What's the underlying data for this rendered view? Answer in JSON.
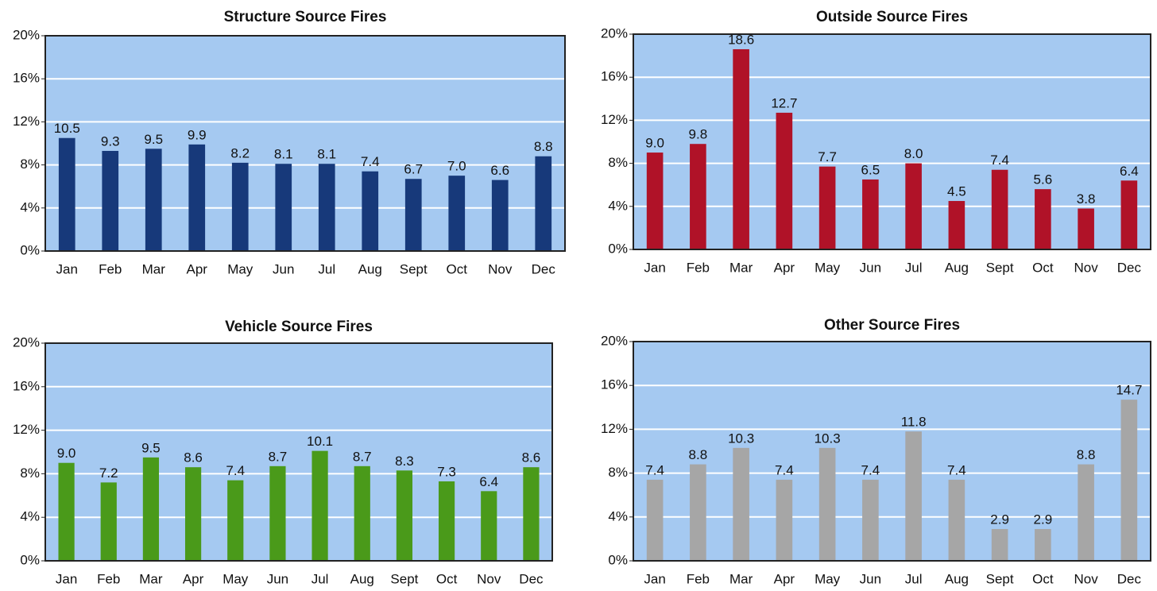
{
  "chart_data": [
    {
      "type": "bar",
      "title": "Structure Source Fires",
      "categories": [
        "Jan",
        "Feb",
        "Mar",
        "Apr",
        "May",
        "Jun",
        "Jul",
        "Aug",
        "Sept",
        "Oct",
        "Nov",
        "Dec"
      ],
      "values": [
        10.5,
        9.3,
        9.5,
        9.9,
        8.2,
        8.1,
        8.1,
        7.4,
        6.7,
        7.0,
        6.6,
        8.8
      ],
      "value_labels": [
        "10.5",
        "9.3",
        "9.5",
        "9.9",
        "8.2",
        "8.1",
        "8.1",
        "7.4",
        "6.7",
        "7.0",
        "6.6",
        "8.8"
      ],
      "color": "#17397a",
      "ylim": [
        0,
        20
      ],
      "yticks": [
        {
          "value": 0,
          "label": "0%"
        },
        {
          "value": 4,
          "label": "4%"
        },
        {
          "value": 8,
          "label": "8%"
        },
        {
          "value": 12,
          "label": "12%"
        },
        {
          "value": 16,
          "label": "16%"
        },
        {
          "value": 20,
          "label": "20%"
        }
      ],
      "grid": true
    },
    {
      "type": "bar",
      "title": "Outside Source Fires",
      "categories": [
        "Jan",
        "Feb",
        "Mar",
        "Apr",
        "May",
        "Jun",
        "Jul",
        "Aug",
        "Sept",
        "Oct",
        "Nov",
        "Dec"
      ],
      "values": [
        9.0,
        9.8,
        18.6,
        12.7,
        7.7,
        6.5,
        8.0,
        4.5,
        7.4,
        5.6,
        3.8,
        6.4
      ],
      "value_labels": [
        "9.0",
        "9.8",
        "18.6",
        "12.7",
        "7.7",
        "6.5",
        "8.0",
        "4.5",
        "7.4",
        "5.6",
        "3.8",
        "6.4"
      ],
      "color": "#b01228",
      "ylim": [
        0,
        20
      ],
      "yticks": [
        {
          "value": 0,
          "label": "0%"
        },
        {
          "value": 4,
          "label": "4%"
        },
        {
          "value": 8,
          "label": "8%"
        },
        {
          "value": 12,
          "label": "12%"
        },
        {
          "value": 16,
          "label": "16%"
        },
        {
          "value": 20,
          "label": "20%"
        }
      ],
      "grid": true
    },
    {
      "type": "bar",
      "title": "Vehicle Source Fires",
      "categories": [
        "Jan",
        "Feb",
        "Mar",
        "Apr",
        "May",
        "Jun",
        "Jul",
        "Aug",
        "Sept",
        "Oct",
        "Nov",
        "Dec"
      ],
      "values": [
        9.0,
        7.2,
        9.5,
        8.6,
        7.4,
        8.7,
        10.1,
        8.7,
        8.3,
        7.3,
        6.4,
        8.6
      ],
      "value_labels": [
        "9.0",
        "7.2",
        "9.5",
        "8.6",
        "7.4",
        "8.7",
        "10.1",
        "8.7",
        "8.3",
        "7.3",
        "6.4",
        "8.6"
      ],
      "color": "#4a9a1a",
      "ylim": [
        0,
        20
      ],
      "yticks": [
        {
          "value": 0,
          "label": "0%"
        },
        {
          "value": 4,
          "label": "4%"
        },
        {
          "value": 8,
          "label": "8%"
        },
        {
          "value": 12,
          "label": "12%"
        },
        {
          "value": 16,
          "label": "16%"
        },
        {
          "value": 20,
          "label": "20%"
        }
      ],
      "grid": true
    },
    {
      "type": "bar",
      "title": "Other Source Fires",
      "categories": [
        "Jan",
        "Feb",
        "Mar",
        "Apr",
        "May",
        "Jun",
        "Jul",
        "Aug",
        "Sept",
        "Oct",
        "Nov",
        "Dec"
      ],
      "values": [
        7.4,
        8.8,
        10.3,
        7.4,
        10.3,
        7.4,
        11.8,
        7.4,
        2.9,
        2.9,
        8.8,
        14.7
      ],
      "value_labels": [
        "7.4",
        "8.8",
        "10.3",
        "7.4",
        "10.3",
        "7.4",
        "11.8",
        "7.4",
        "2.9",
        "2.9",
        "8.8",
        "14.7"
      ],
      "color": "#a6a6a6",
      "ylim": [
        0,
        20
      ],
      "yticks": [
        {
          "value": 0,
          "label": "0%"
        },
        {
          "value": 4,
          "label": "4%"
        },
        {
          "value": 8,
          "label": "8%"
        },
        {
          "value": 12,
          "label": "12%"
        },
        {
          "value": 16,
          "label": "16%"
        },
        {
          "value": 20,
          "label": "20%"
        }
      ],
      "grid": true
    }
  ]
}
